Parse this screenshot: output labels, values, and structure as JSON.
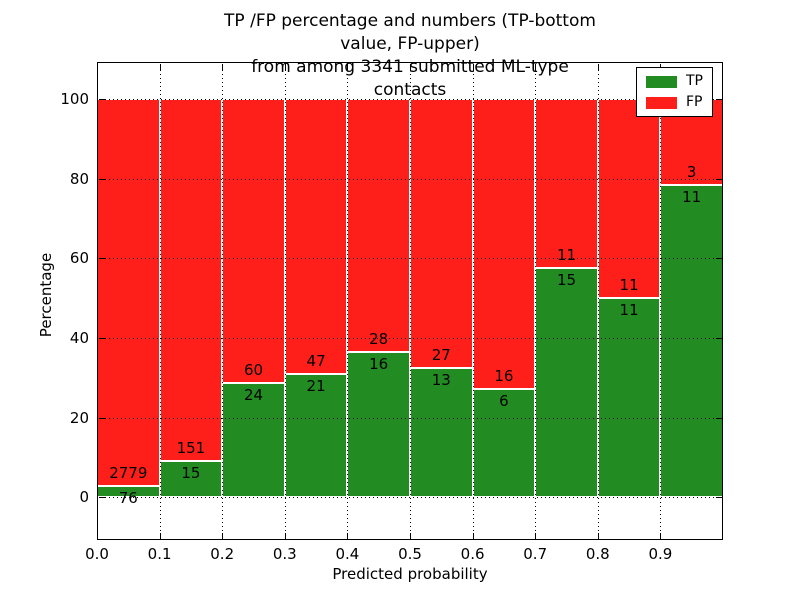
{
  "chart_data": {
    "type": "bar",
    "stacked": true,
    "title": "TP /FP percentage and numbers (TP-bottom value, FP-upper)\nfrom among 3341 submitted ML-type contacts",
    "xlabel": "Predicted probability",
    "ylabel": "Percentage",
    "x_ticks": [
      "0.0",
      "0.1",
      "0.2",
      "0.3",
      "0.4",
      "0.5",
      "0.6",
      "0.7",
      "0.8",
      "0.9"
    ],
    "y_ticks": [
      0,
      20,
      40,
      60,
      80,
      100
    ],
    "xlim": [
      0.0,
      1.0
    ],
    "ylim": [
      -10.8,
      109.4
    ],
    "bin_width": 0.1,
    "grid": "dotted",
    "legend_position": "upper right",
    "series": [
      {
        "name": "TP",
        "color": "#228b22",
        "counts": [
          76,
          15,
          24,
          21,
          16,
          13,
          6,
          15,
          11,
          11
        ]
      },
      {
        "name": "FP",
        "color": "#ff1f1a",
        "counts": [
          2779,
          151,
          60,
          47,
          28,
          27,
          16,
          11,
          11,
          3
        ]
      }
    ],
    "tp_percent": [
      2.66,
      9.04,
      28.57,
      30.88,
      36.36,
      32.5,
      27.27,
      57.69,
      50.0,
      78.57
    ],
    "bar_total_percent": 100
  }
}
